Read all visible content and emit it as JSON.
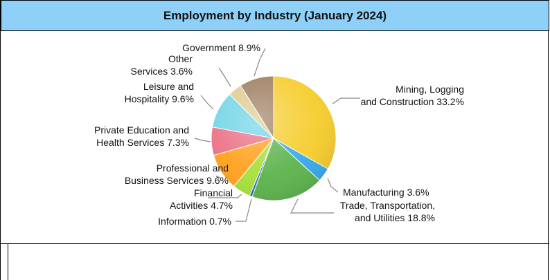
{
  "chart_data": {
    "type": "pie",
    "title": "Employment by Industry (January 2024)",
    "start_angle_deg": 0,
    "direction": "clockwise",
    "slices": [
      {
        "name": "Mining, Logging and Construction",
        "value": 33.2,
        "label_lines": [
          "Mining, Logging",
          "and Construction 33.2%"
        ],
        "color": "#f6cc2b"
      },
      {
        "name": "Manufacturing",
        "value": 3.6,
        "label_lines": [
          "Manufacturing 3.6%"
        ],
        "color": "#36a9ec"
      },
      {
        "name": "Trade, Transportation, and Utilities",
        "value": 18.8,
        "label_lines": [
          "Trade, Transportation,",
          "and Utilities 18.8%"
        ],
        "color": "#5cb34c"
      },
      {
        "name": "Information",
        "value": 0.7,
        "label_lines": [
          "Information 0.7%"
        ],
        "color": "#1f6fb0"
      },
      {
        "name": "Financial Activities",
        "value": 4.7,
        "label_lines": [
          "Financial",
          "Activities 4.7%"
        ],
        "color": "#a6e03a"
      },
      {
        "name": "Professional and Business Services",
        "value": 9.6,
        "label_lines": [
          "Professional and",
          "Business Services 9.6%"
        ],
        "color": "#ff9f1a"
      },
      {
        "name": "Private Education and Health Services",
        "value": 7.3,
        "label_lines": [
          "Private Education and",
          "Health Services 7.3%"
        ],
        "color": "#ec6e84"
      },
      {
        "name": "Leisure and Hospitality",
        "value": 9.6,
        "label_lines": [
          "Leisure and",
          "Hospitality 9.6%"
        ],
        "color": "#6fd3e6"
      },
      {
        "name": "Other Services",
        "value": 3.6,
        "label_lines": [
          "Other",
          "Services 3.6%"
        ],
        "color": "#dbcb8c"
      },
      {
        "name": "Government",
        "value": 8.9,
        "label_lines": [
          "Government 8.9%"
        ],
        "color": "#9c7b5c"
      }
    ]
  }
}
